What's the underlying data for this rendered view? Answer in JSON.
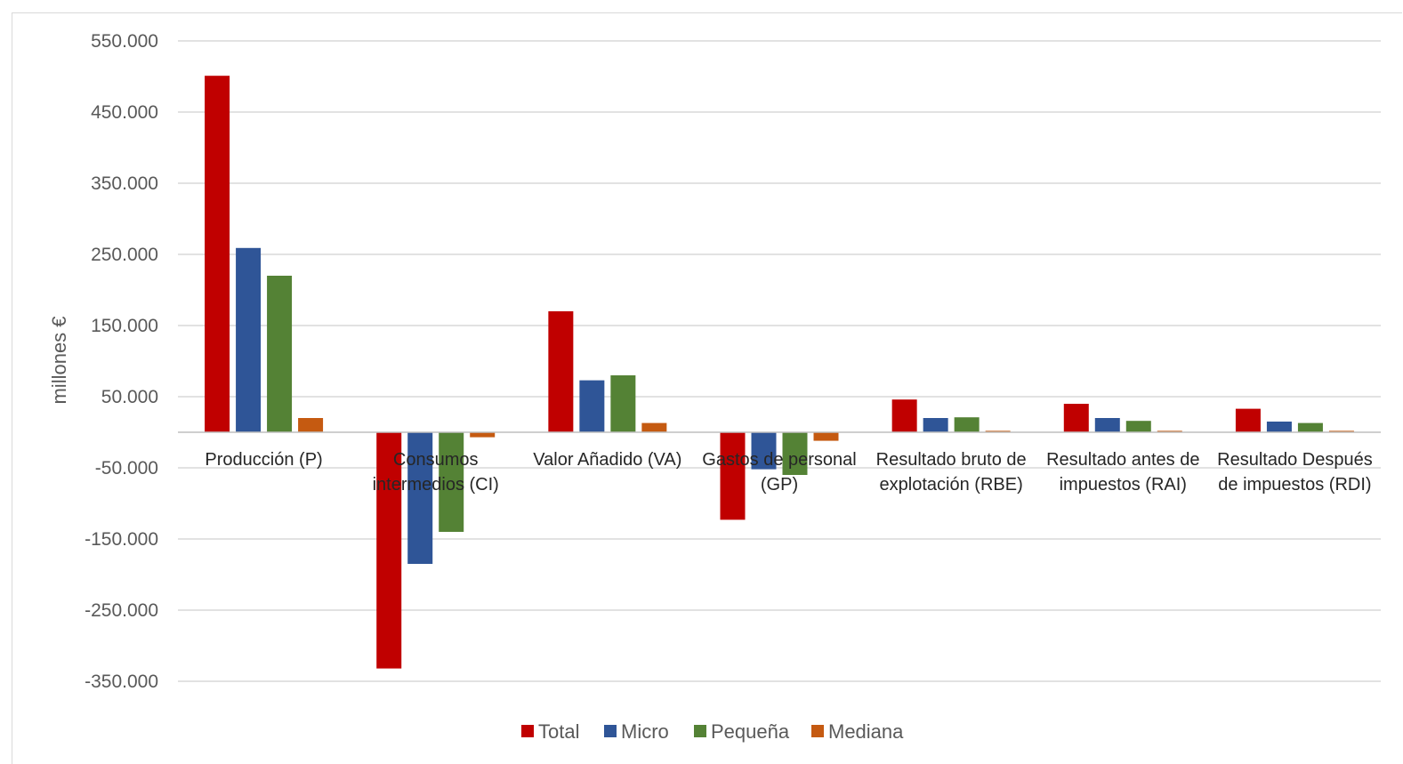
{
  "chart_data": {
    "type": "bar",
    "title": "",
    "xlabel": "",
    "ylabel": "millones €",
    "ylim": [
      -350000,
      550000
    ],
    "yticks": [
      550000,
      450000,
      350000,
      250000,
      150000,
      50000,
      -50000,
      -150000,
      -250000,
      -350000
    ],
    "ytick_labels": [
      "550.000",
      "450.000",
      "350.000",
      "250.000",
      "150.000",
      "50.000",
      "-50.000",
      "-150.000",
      "-250.000",
      "-350.000"
    ],
    "grid": true,
    "legend": "bottom",
    "categories": [
      [
        "Producción (P)"
      ],
      [
        "Consumos",
        "intermedios (CI)"
      ],
      [
        "Valor Añadido (VA)"
      ],
      [
        "Gastos de personal",
        "(GP)"
      ],
      [
        "Resultado bruto de",
        "explotación (RBE)"
      ],
      [
        "Resultado antes de",
        "impuestos (RAI)"
      ],
      [
        "Resultado Después",
        "de impuestos (RDI)"
      ]
    ],
    "series": [
      {
        "name": "Total",
        "color": "#c00000",
        "values": [
          501000,
          -332000,
          170000,
          -123000,
          46000,
          40000,
          33000
        ]
      },
      {
        "name": "Micro",
        "color": "#2f5597",
        "values": [
          259000,
          -185000,
          73000,
          -52000,
          20000,
          20000,
          15000
        ]
      },
      {
        "name": "Pequeña",
        "color": "#548235",
        "values": [
          220000,
          -140000,
          80000,
          -60000,
          21000,
          16000,
          13000
        ]
      },
      {
        "name": "Mediana",
        "color": "#c55a11",
        "values": [
          20000,
          -7000,
          13000,
          -12000,
          2000,
          2000,
          2000
        ]
      }
    ]
  }
}
